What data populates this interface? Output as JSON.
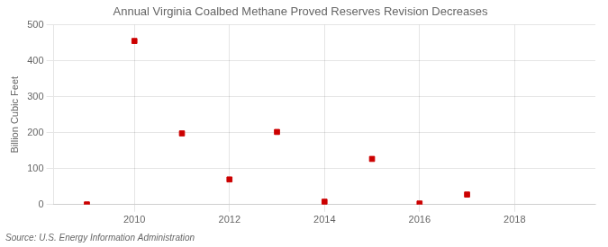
{
  "chart_data": {
    "type": "scatter",
    "title": "Annual Virginia Coalbed Methane Proved Reserves Revision Decreases",
    "ylabel": "Billion Cubic Feet",
    "annotation": "Source: U.S. Energy Information Administration",
    "x": [
      2009,
      2010,
      2011,
      2012,
      2013,
      2014,
      2015,
      2016,
      2017
    ],
    "values": [
      0.5,
      455,
      198,
      70,
      202,
      8,
      127,
      3,
      28
    ],
    "color": "#cc0000",
    "marker": "square",
    "xlim": [
      2008.3,
      2019.7
    ],
    "xticks": [
      2010,
      2012,
      2014,
      2016,
      2018
    ],
    "ylim": [
      0,
      500
    ],
    "yticks": [
      0,
      100,
      200,
      300,
      400,
      500
    ],
    "grid": true
  }
}
